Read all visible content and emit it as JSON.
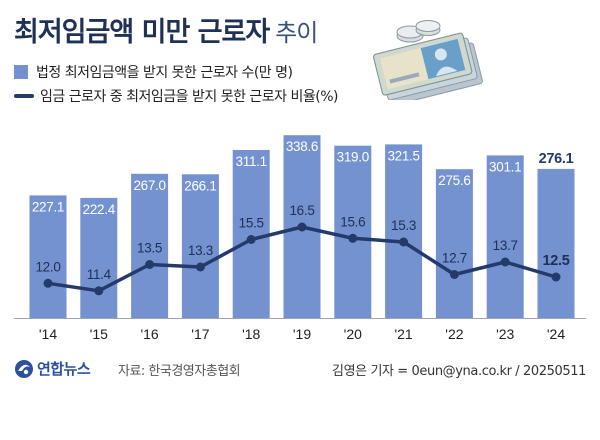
{
  "header": {
    "title": "최저임금액 미만 근로자",
    "subtitle": "추이"
  },
  "legend": {
    "bar_label": "법정 최저임금액을 받지 못한 근로자 수(만 명)",
    "line_label": "임금 근로자 중 최저임금을 받지 못한 근로자 비율(%)"
  },
  "colors": {
    "bar": "#7392cf",
    "line": "#243a6b",
    "title": "#1f3155"
  },
  "illustration": "banknotes-and-coins-icon",
  "chart_data": {
    "type": "bar",
    "categories": [
      "'14",
      "'15",
      "'16",
      "'17",
      "'18",
      "'19",
      "'20",
      "'21",
      "'22",
      "'23",
      "'24"
    ],
    "series": [
      {
        "name": "법정 최저임금액을 받지 못한 근로자 수(만 명)",
        "type": "bar",
        "values": [
          227.1,
          222.4,
          267.0,
          266.1,
          311.1,
          338.6,
          319.0,
          321.5,
          275.6,
          301.1,
          276.1
        ],
        "labels": [
          "227.1",
          "222.4",
          "267.0",
          "266.1",
          "311.1",
          "338.6",
          "319.0",
          "321.5",
          "275.6",
          "301.1",
          "276.1"
        ]
      },
      {
        "name": "임금 근로자 중 최저임금을 받지 못한 근로자 비율(%)",
        "type": "line",
        "values": [
          12.0,
          11.4,
          13.5,
          13.3,
          15.5,
          16.5,
          15.6,
          15.3,
          12.7,
          13.7,
          12.5
        ],
        "labels": [
          "12.0",
          "11.4",
          "13.5",
          "13.3",
          "15.5",
          "16.5",
          "15.6",
          "15.3",
          "12.7",
          "13.7",
          "12.5"
        ]
      }
    ],
    "grid": false,
    "legend_position": "top-left"
  },
  "footer": {
    "logo_text": "연합뉴스",
    "source": "자료: 한국경영자총협회",
    "credit": "김영은 기자 = 0eun@yna.co.kr / 20250511"
  }
}
